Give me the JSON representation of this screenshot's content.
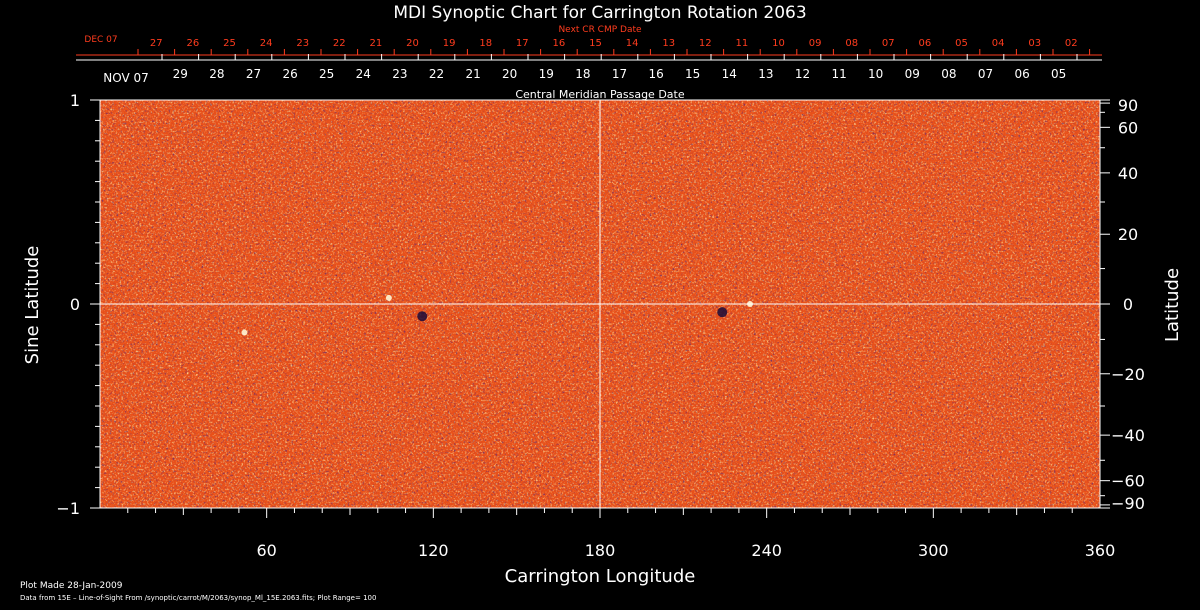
{
  "chart_data": {
    "type": "heatmap",
    "title": "MDI Synoptic Chart for Carrington Rotation 2063",
    "xlabel": "Carrington Longitude",
    "ylabel_left": "Sine Latitude",
    "ylabel_right": "Latitude",
    "xlim": [
      0,
      360
    ],
    "ylim": [
      -1,
      1
    ],
    "x_ticks": [
      "60",
      "120",
      "180",
      "240",
      "300",
      "360"
    ],
    "x_tick_values": [
      60,
      120,
      180,
      240,
      300,
      360
    ],
    "y_left_ticks": [
      "1",
      "0",
      "−1"
    ],
    "y_left_tick_values": [
      1,
      0,
      -1
    ],
    "y_right_ticks": [
      "90",
      "60",
      "40",
      "20",
      "0",
      "−20",
      "−40",
      "−60",
      "−90"
    ],
    "y_right_tick_values": [
      90,
      60,
      40,
      20,
      0,
      -20,
      -40,
      -60,
      -90
    ],
    "grid": "crosshair at longitude 180 and latitude 0",
    "colormap": [
      "#1a0a3a",
      "#8a1a10",
      "#e8501a",
      "#ffa040",
      "#ffffa0"
    ],
    "background_color": "#e8501a",
    "plot_range": 100,
    "top_axis_next": {
      "label": "Next CR CMP Date",
      "month": "DEC 07",
      "days": [
        "27",
        "26",
        "25",
        "24",
        "23",
        "22",
        "21",
        "20",
        "19",
        "18",
        "17",
        "16",
        "15",
        "14",
        "13",
        "12",
        "11",
        "10",
        "09",
        "08",
        "07",
        "06",
        "05",
        "04",
        "03",
        "02"
      ],
      "color": "#ff3c1e"
    },
    "top_axis_cmp": {
      "label": "Central Meridian Passage Date",
      "month": "NOV 07",
      "days": [
        "29",
        "28",
        "27",
        "26",
        "25",
        "24",
        "23",
        "22",
        "21",
        "20",
        "19",
        "18",
        "17",
        "16",
        "15",
        "14",
        "13",
        "12",
        "11",
        "10",
        "09",
        "08",
        "07",
        "06",
        "05"
      ],
      "color": "#ffffff"
    },
    "features": [
      {
        "type": "negative",
        "x": 224,
        "y": -0.04
      },
      {
        "type": "positive",
        "x": 234,
        "y": 0.0
      },
      {
        "type": "positive",
        "x": 104,
        "y": 0.03
      },
      {
        "type": "negative",
        "x": 116,
        "y": -0.06
      },
      {
        "type": "positive",
        "x": 52,
        "y": -0.14
      }
    ]
  },
  "footer": {
    "plot_made": "Plot Made 28-Jan-2009",
    "data_source": "Data from 15E – Line-of-Sight From /synoptic/carrot/M/2063/synop_Ml_15E.2063.fits; Plot Range=  100"
  }
}
